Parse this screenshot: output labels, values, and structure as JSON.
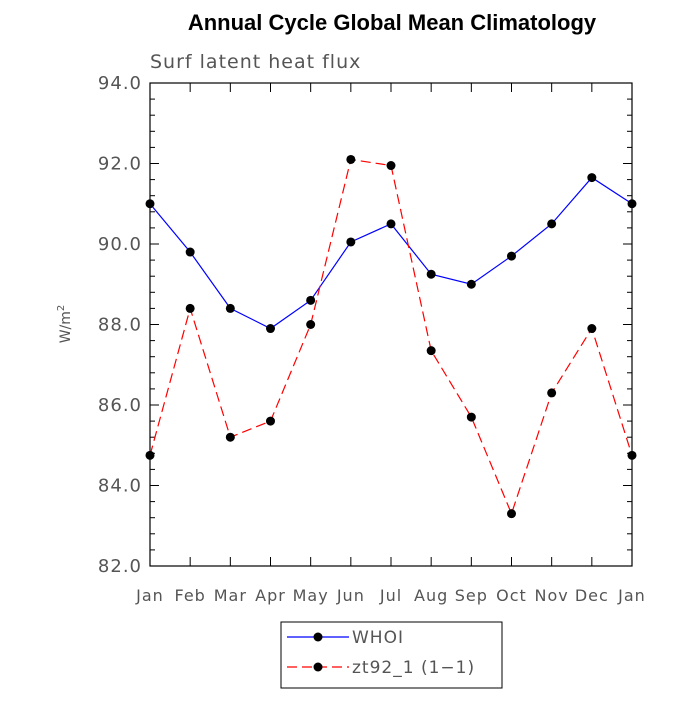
{
  "chart_data": {
    "type": "line",
    "title": "Annual Cycle Global Mean Climatology",
    "subtitle": "Surf latent heat flux",
    "ylabel": "W/m",
    "ylabel_superscript": "2",
    "xlabel": "",
    "categories": [
      "Jan",
      "Feb",
      "Mar",
      "Apr",
      "May",
      "Jun",
      "Jul",
      "Aug",
      "Sep",
      "Oct",
      "Nov",
      "Dec",
      "Jan"
    ],
    "ylim": [
      82.0,
      94.0
    ],
    "yticks": [
      "82.0",
      "84.0",
      "86.0",
      "88.0",
      "90.0",
      "92.0",
      "94.0"
    ],
    "grid": false,
    "legend_position": "bottom-center",
    "series": [
      {
        "name": "WHOI",
        "color": "#0000ff",
        "line_style": "solid",
        "marker": "filled-circle",
        "values": [
          91.0,
          89.8,
          88.4,
          87.9,
          88.6,
          90.05,
          90.5,
          89.25,
          89.0,
          89.7,
          90.5,
          91.65,
          91.0
        ]
      },
      {
        "name": "zt92_1 (1−1)",
        "color": "#ff0000",
        "line_style": "dashed",
        "marker": "filled-circle",
        "values": [
          84.75,
          88.4,
          85.2,
          85.6,
          88.0,
          92.1,
          91.95,
          87.35,
          85.7,
          83.3,
          86.3,
          87.9,
          84.75
        ]
      }
    ]
  }
}
